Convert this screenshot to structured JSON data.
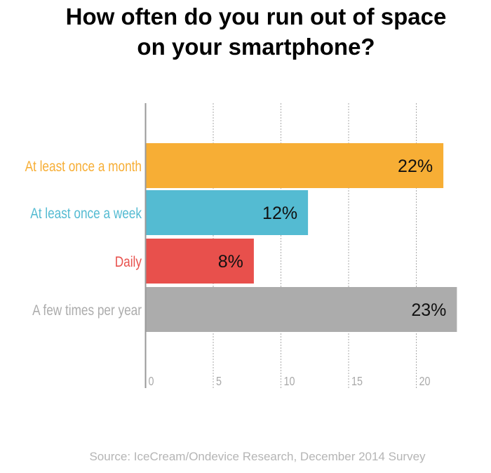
{
  "chart_data": {
    "type": "bar",
    "orientation": "horizontal",
    "title": "How often do you run out of space on your smartphone?",
    "title_lines": [
      "How often do you run out of space",
      "on your smartphone?"
    ],
    "categories": [
      "At least once a month",
      "At least once a week",
      "Daily",
      "A few times per year"
    ],
    "values": [
      22,
      12,
      8,
      23
    ],
    "value_labels": [
      "22%",
      "12%",
      "8%",
      "23%"
    ],
    "colors": [
      "#f7ae35",
      "#54bbd2",
      "#e8504c",
      "#acacac"
    ],
    "xticks": [
      0,
      5,
      10,
      15,
      20
    ],
    "xtick_labels": [
      "0",
      "5",
      "10",
      "15",
      "20"
    ],
    "xlim": [
      0,
      25
    ],
    "grid": true,
    "xlabel": "",
    "ylabel": "",
    "source": "Source: IceCream/Ondevice Research, December 2014 Survey"
  }
}
